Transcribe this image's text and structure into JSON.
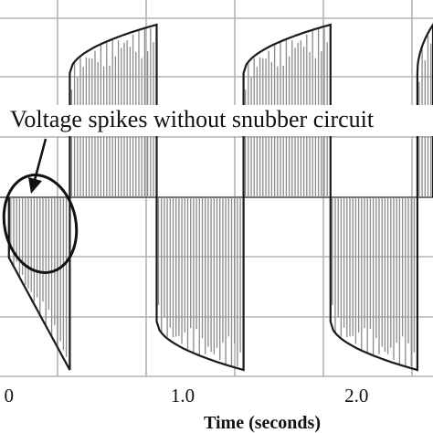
{
  "chart_data": {
    "type": "line",
    "xlabel": "Time (seconds)",
    "x_tick_labels": [
      {
        "x": 0.0,
        "label": "0"
      },
      {
        "x": 1.0,
        "label": "1.0"
      },
      {
        "x": 2.0,
        "label": "2.0"
      }
    ],
    "xlim": [
      -0.02,
      2.44
    ],
    "ylim": [
      -1.6,
      1.6
    ],
    "grid": true,
    "annotation": {
      "text": "Voltage spikes without snubber circuit",
      "target_x": 0.05,
      "target_y": -0.15
    },
    "series": [
      {
        "description_key": "square envelope",
        "segments": [
          {
            "x_start": 0.0,
            "x_end": 0.35,
            "sign": -1,
            "spiked": true
          },
          {
            "x_start": 0.35,
            "x_end": 0.85,
            "sign": 1,
            "spiked": false
          },
          {
            "x_start": 0.85,
            "x_end": 1.35,
            "sign": -1,
            "spiked": false
          },
          {
            "x_start": 1.35,
            "x_end": 1.85,
            "sign": 1,
            "spiked": false
          },
          {
            "x_start": 1.85,
            "x_end": 2.35,
            "sign": -1,
            "spiked": false
          },
          {
            "x_start": 2.35,
            "x_end": 2.44,
            "sign": 1,
            "spiked": false
          }
        ],
        "envelope_amplitude": 1.4,
        "pulse_mean_amplitude": 1.2
      }
    ]
  },
  "colors": {
    "grid": "#b4b4b4",
    "hatch": "#8a8a8a",
    "envelope": "#1a1a1a",
    "baseline": "#6f6f6f"
  }
}
